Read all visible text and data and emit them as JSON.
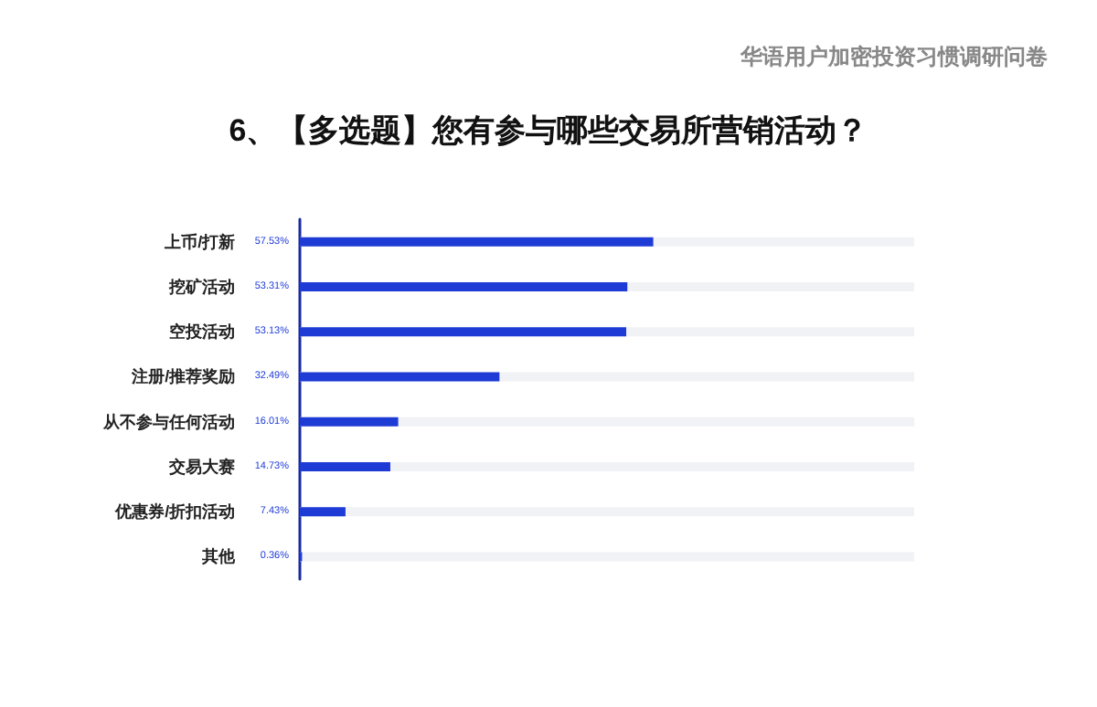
{
  "chart_data": {
    "type": "bar",
    "orientation": "horizontal",
    "title": "6、【多选题】您有参与哪些交易所营销活动？",
    "subtitle": "华语用户加密投资习惯调研问卷",
    "categories": [
      "上币/打新",
      "挖矿活动",
      "空投活动",
      "注册/推荐奖励",
      "从不参与任何活动",
      "交易大赛",
      "优惠券/折扣活动",
      "其他"
    ],
    "values": [
      57.53,
      53.31,
      53.13,
      32.49,
      16.01,
      14.73,
      7.43,
      0.36
    ],
    "value_labels": [
      "57.53%",
      "53.31%",
      "53.13%",
      "32.49%",
      "16.01%",
      "14.73%",
      "7.43%",
      "0.36%"
    ],
    "color": "#1f3bd6",
    "xlim": [
      0,
      100
    ],
    "tick_labels": "y",
    "grid": false
  }
}
